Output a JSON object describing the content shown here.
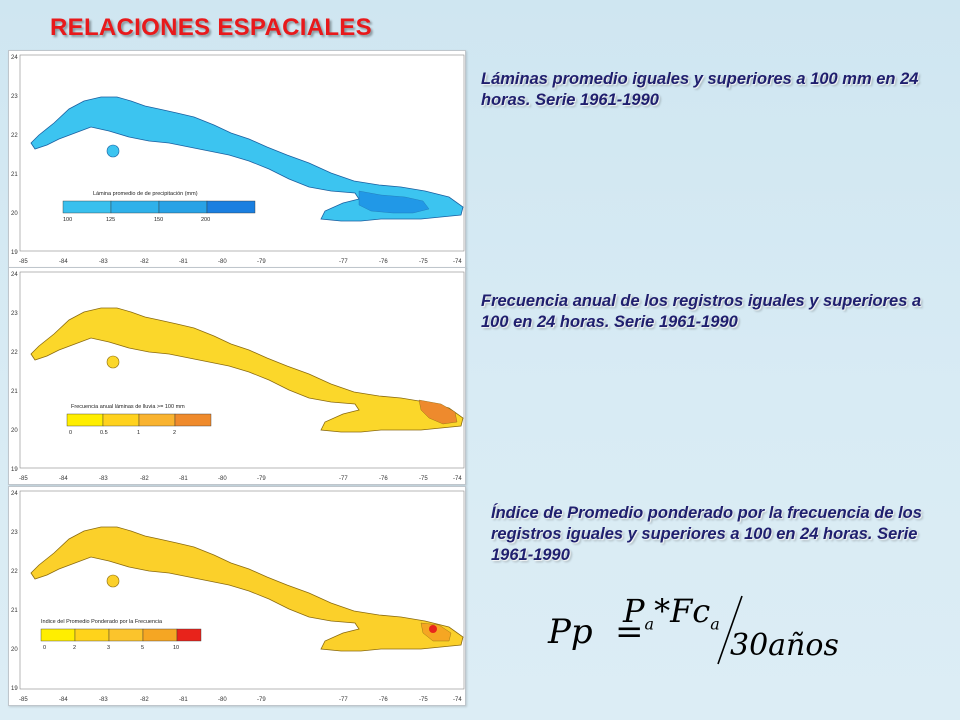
{
  "title": "RELACIONES ESPACIALES",
  "captions": {
    "map1": "Láminas promedio iguales y superiores a 100 mm en 24 horas. Serie 1961-1990",
    "map2": "Frecuencia anual de los registros iguales y superiores a 100 en 24 horas. Serie 1961-1990",
    "map3": "Índice de Promedio ponderado por la frecuencia de los registros iguales y superiores a 100 en 24 horas. Serie 1961-1990"
  },
  "axes": {
    "x_ticks": [
      "-85",
      "-84",
      "-83",
      "-82",
      "-81",
      "-80",
      "-79",
      "-77",
      "-76",
      "-75",
      "-74"
    ],
    "y_ticks": [
      "24",
      "23",
      "22",
      "21",
      "20",
      "19"
    ]
  },
  "legends": {
    "map1": {
      "title": "Lámina promedio de de precipitación (mm)",
      "labels": [
        "100",
        "125",
        "150",
        "200"
      ],
      "colors": [
        "#39c0ee",
        "#2fb1ea",
        "#28a2e6",
        "#1a7fe0"
      ]
    },
    "map2": {
      "title": "Frecuencia anual láminas de lluvia >= 100 mm",
      "labels": [
        "0",
        "0.5",
        "1",
        "2"
      ],
      "colors": [
        "#ffee00",
        "#ffd21e",
        "#f9b330",
        "#ef8a2c"
      ]
    },
    "map3": {
      "title": "Indice del Promedio Ponderado por la Frecuencia",
      "labels": [
        "0",
        "2",
        "3",
        "5",
        "10"
      ],
      "colors": [
        "#ffee00",
        "#ffd31b",
        "#fbc42c",
        "#f5a623",
        "#e8231b"
      ]
    }
  },
  "map_colors": {
    "map1_fill": "#3cc4f0",
    "map1_dark": "#1b8ee6",
    "map2_fill": "#fbd72a",
    "map2_dark": "#ee8a2d",
    "map3_fill": "#fbd02a",
    "map3_dark": "#e8251c"
  },
  "formula": {
    "lhs": "Pp",
    "equals": "=",
    "numerator": "P",
    "numerator_sub": "a",
    "times": "*",
    "factor": "Fc",
    "factor_sub": "a",
    "denominator": "30años"
  }
}
